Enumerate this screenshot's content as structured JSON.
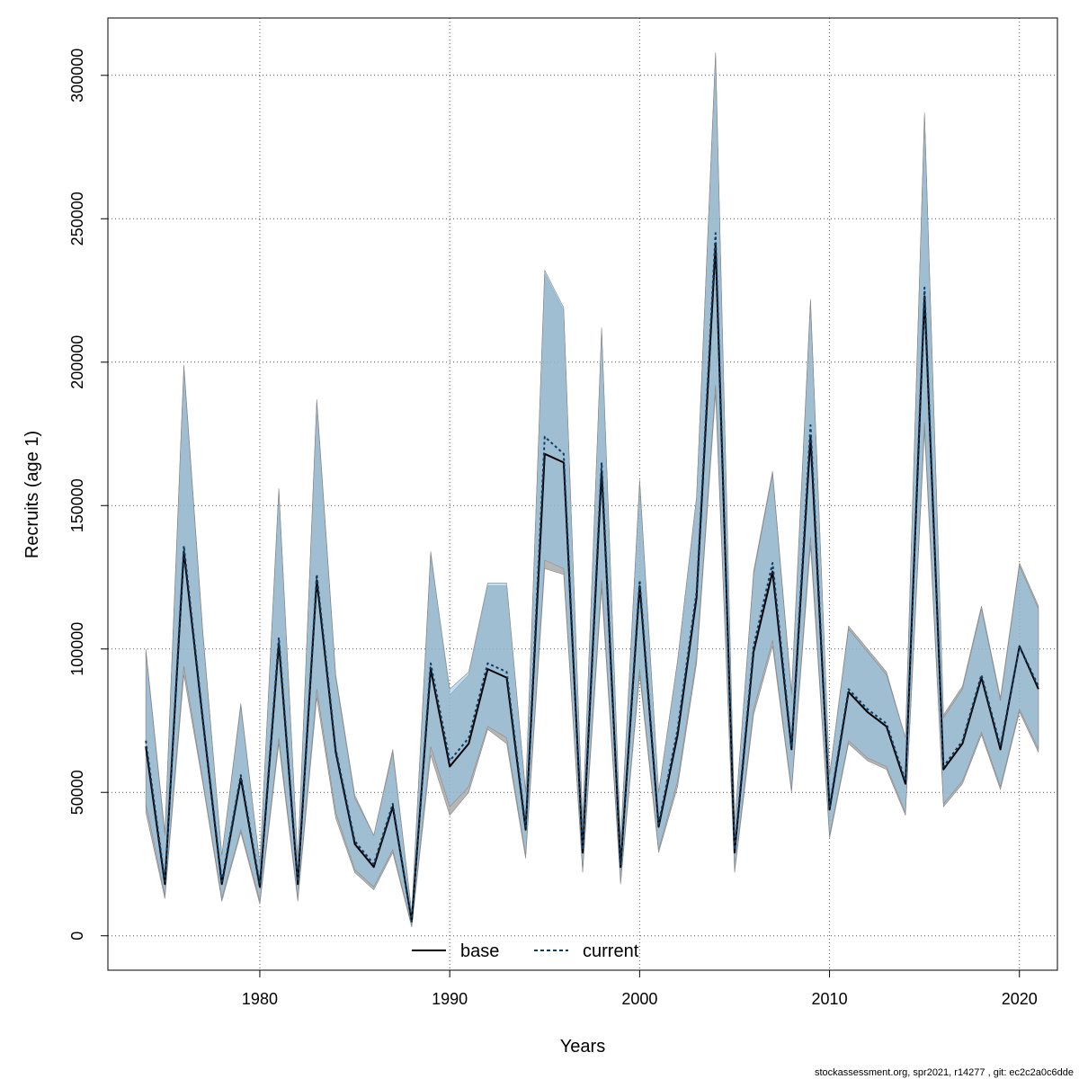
{
  "chart_data": {
    "type": "line",
    "title": "",
    "xlabel": "Years",
    "ylabel": "Recruits (age 1)",
    "xlim": [
      1972,
      2022
    ],
    "ylim": [
      -12000,
      320000
    ],
    "xticks": [
      "1980",
      "1990",
      "2000",
      "2010",
      "2020"
    ],
    "yticks": [
      "0",
      "50000",
      "100000",
      "150000",
      "200000",
      "250000",
      "300000"
    ],
    "grid": true,
    "legend_position": "bottom-center",
    "years": [
      1974,
      1975,
      1976,
      1977,
      1978,
      1979,
      1980,
      1981,
      1982,
      1983,
      1984,
      1985,
      1986,
      1987,
      1988,
      1989,
      1990,
      1991,
      1992,
      1993,
      1994,
      1995,
      1996,
      1997,
      1998,
      1999,
      2000,
      2001,
      2002,
      2003,
      2004,
      2005,
      2006,
      2007,
      2008,
      2009,
      2010,
      2011,
      2012,
      2013,
      2014,
      2015,
      2016,
      2017,
      2018,
      2019,
      2020,
      2021
    ],
    "series": [
      {
        "name": "base",
        "color": "#000000",
        "band_color": "#9e9e9e",
        "values": [
          66000,
          18000,
          134000,
          75000,
          18000,
          55000,
          17000,
          102000,
          18000,
          124000,
          64000,
          32000,
          24000,
          45000,
          5000,
          93000,
          59000,
          67000,
          93000,
          90000,
          37000,
          168000,
          165000,
          29000,
          162000,
          24000,
          122000,
          38000,
          70000,
          118000,
          241000,
          29000,
          99000,
          127000,
          65000,
          174000,
          44000,
          85000,
          78000,
          73000,
          53000,
          223000,
          58000,
          67000,
          90000,
          65000,
          101000,
          86000
        ],
        "lower": [
          43000,
          13000,
          91000,
          53000,
          12000,
          36000,
          11000,
          67000,
          12000,
          83000,
          41000,
          22000,
          16000,
          29000,
          3000,
          63000,
          42000,
          50000,
          72000,
          67000,
          27000,
          128000,
          126000,
          22000,
          121000,
          18000,
          91000,
          29000,
          52000,
          95000,
          189000,
          22000,
          77000,
          101000,
          50000,
          136000,
          34000,
          67000,
          61000,
          58000,
          42000,
          176000,
          45000,
          53000,
          70000,
          51000,
          78000,
          64000
        ],
        "upper": [
          100000,
          36000,
          199000,
          106000,
          28000,
          81000,
          25000,
          156000,
          26000,
          187000,
          91000,
          49000,
          35000,
          65000,
          8000,
          134000,
          84000,
          91000,
          122000,
          122000,
          50000,
          231000,
          218000,
          40000,
          211000,
          33000,
          159000,
          50000,
          96000,
          153000,
          308000,
          39000,
          127000,
          162000,
          85000,
          222000,
          56000,
          108000,
          100000,
          92000,
          69000,
          287000,
          77000,
          87000,
          115000,
          83000,
          130000,
          115000
        ]
      },
      {
        "name": "current",
        "color": "#0b3d66",
        "band_color": "#8ec4ea",
        "values": [
          68000,
          19000,
          136000,
          76000,
          19000,
          56000,
          18000,
          104000,
          19000,
          126000,
          65000,
          33000,
          25000,
          46000,
          5000,
          95000,
          61000,
          69000,
          95000,
          92000,
          38000,
          174000,
          168000,
          30000,
          165000,
          25000,
          124000,
          39000,
          72000,
          120000,
          245000,
          30000,
          101000,
          130000,
          66000,
          178000,
          45000,
          86000,
          79000,
          74000,
          54000,
          226000,
          59000,
          68000,
          91000,
          66000,
          101000,
          87000
        ],
        "lower": [
          46000,
          14000,
          94000,
          54000,
          13000,
          37000,
          12000,
          69000,
          13000,
          86000,
          43000,
          23000,
          17000,
          30000,
          3500,
          66000,
          45000,
          52000,
          73000,
          69000,
          28000,
          131000,
          128000,
          23000,
          124000,
          19000,
          93000,
          30000,
          54000,
          97000,
          192000,
          23000,
          79000,
          103000,
          51000,
          139000,
          35000,
          68000,
          62000,
          59000,
          43000,
          179000,
          46000,
          54000,
          71000,
          52000,
          79000,
          65000
        ],
        "upper": [
          99000,
          35000,
          198000,
          105000,
          28000,
          80000,
          25000,
          155000,
          26000,
          186000,
          90000,
          48000,
          35000,
          64000,
          8000,
          133000,
          86000,
          92000,
          123000,
          123000,
          50000,
          232000,
          219000,
          39000,
          212000,
          33000,
          158000,
          50000,
          96000,
          153000,
          307000,
          39000,
          126000,
          161000,
          84000,
          221000,
          56000,
          107000,
          99000,
          91000,
          69000,
          286000,
          76000,
          86000,
          114000,
          82000,
          129000,
          114000
        ]
      }
    ]
  },
  "footer": "stockassessment.org, spr2021, r14277 , git: ec2c2a0c6dde"
}
